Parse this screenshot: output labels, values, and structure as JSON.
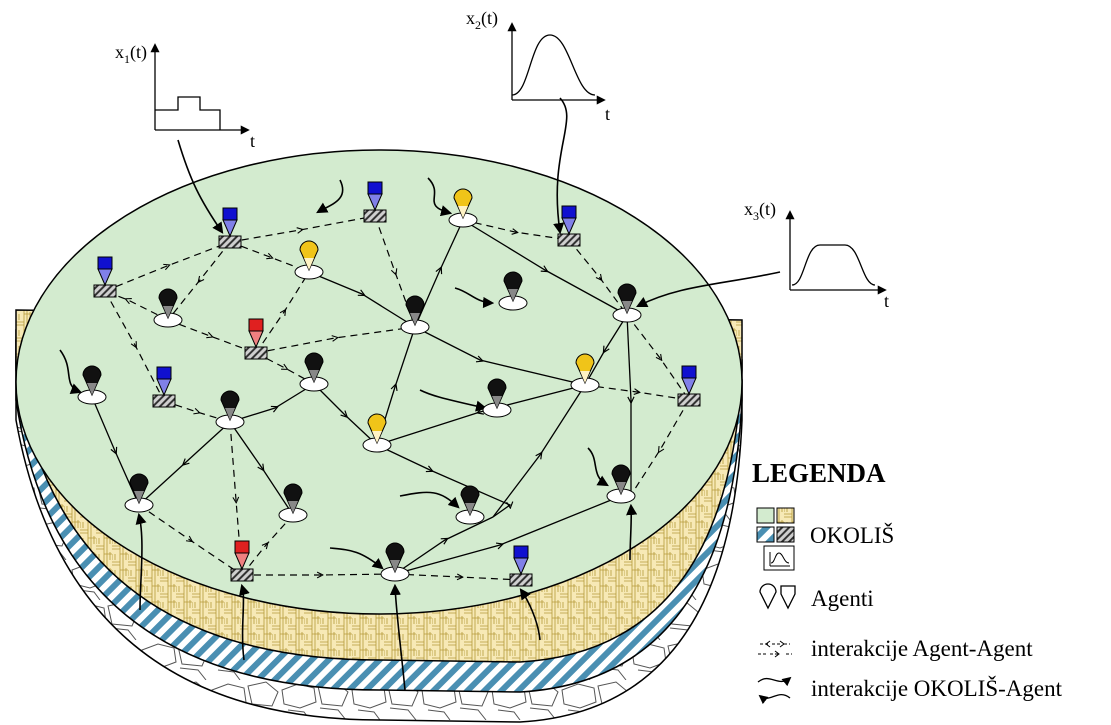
{
  "signals": [
    {
      "y_label": "x",
      "y_sub": "1",
      "y_suffix": "(t)",
      "t_label": "t"
    },
    {
      "y_label": "x",
      "y_sub": "2",
      "y_suffix": "(t)",
      "t_label": "t"
    },
    {
      "y_label": "x",
      "y_sub": "3",
      "y_suffix": "(t)",
      "t_label": "t"
    }
  ],
  "legend": {
    "title": "LEGENDA",
    "environment": "OKOLIŠ",
    "agents": "Agenti",
    "agent_agent": "interakcije Agent-Agent",
    "env_agent": "interakcije OKOLIŠ-Agent"
  },
  "colors": {
    "surface": "#d3ebcf",
    "agent_black": "#111111",
    "agent_yellow": "#f0c419",
    "agent_blue": "#1010d0",
    "agent_red": "#e02020",
    "layer_wood": "#f6e7b0",
    "layer_hatch": "#4b8fb0"
  },
  "agents_icons": [
    "black-pin-agent-icon",
    "yellow-pin-agent-icon",
    "blue-box-agent-icon",
    "red-box-agent-icon"
  ]
}
